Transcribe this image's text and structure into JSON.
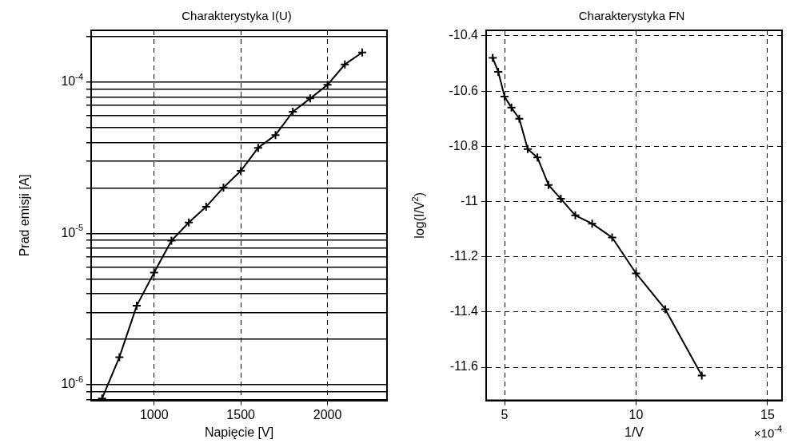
{
  "chart_data": [
    {
      "type": "line",
      "title": "Charakterystyka I(U)",
      "xlabel": "Napięcie [V]",
      "ylabel": "Prad emisji [A]",
      "x": [
        700,
        800,
        900,
        1000,
        1100,
        1200,
        1300,
        1400,
        1500,
        1600,
        1700,
        1800,
        1900,
        2000,
        2100,
        2200
      ],
      "series": [
        {
          "color": "#000000",
          "values": [
            8.1e-07,
            1.52e-06,
            3.33e-06,
            5.5e-06,
            8.95e-06,
            1.18e-05,
            1.5e-05,
            2.01e-05,
            2.59e-05,
            3.68e-05,
            4.47e-05,
            6.37e-05,
            7.8e-05,
            9.6e-05,
            0.000131,
            0.000157
          ]
        }
      ],
      "log": "y",
      "xlim": [
        637,
        2343
      ],
      "ylim": [
        7.87e-07,
        0.00022
      ],
      "xticks": [
        1000,
        1500,
        2000
      ],
      "yticks": [
        {
          "value": 8e-07,
          "label": null
        },
        {
          "value": 9e-07,
          "label": null
        },
        {
          "value": 1e-06,
          "label": "10$^{-6}$"
        },
        {
          "value": 2e-06,
          "label": null
        },
        {
          "value": 3e-06,
          "label": null
        },
        {
          "value": 4e-06,
          "label": null
        },
        {
          "value": 5e-06,
          "label": null
        },
        {
          "value": 6e-06,
          "label": null
        },
        {
          "value": 7e-06,
          "label": null
        },
        {
          "value": 8e-06,
          "label": null
        },
        {
          "value": 9e-06,
          "label": null
        },
        {
          "value": 1e-05,
          "label": "10$^{-5}$"
        },
        {
          "value": 2e-05,
          "label": null
        },
        {
          "value": 3e-05,
          "label": null
        },
        {
          "value": 4e-05,
          "label": null
        },
        {
          "value": 5e-05,
          "label": null
        },
        {
          "value": 6e-05,
          "label": null
        },
        {
          "value": 7e-05,
          "label": null
        },
        {
          "value": 8e-05,
          "label": null
        },
        {
          "value": 9e-05,
          "label": null
        },
        {
          "value": 0.0001,
          "label": "10$^{-4}$"
        },
        {
          "value": 0.0002,
          "label": null
        }
      ],
      "grid": true,
      "legend": false,
      "marker": "cross",
      "line_style": "solid"
    },
    {
      "type": "line",
      "title": "Charakterystyka FN",
      "xlabel": "1/V",
      "ylabel": "log(I/V$^{2}$)",
      "x": [
        4.55,
        4.76,
        5.0,
        5.26,
        5.56,
        5.88,
        6.25,
        6.67,
        7.14,
        7.69,
        8.33,
        9.09,
        10.0,
        11.11,
        12.5
      ],
      "series": [
        {
          "color": "#000000",
          "values": [
            -10.48,
            -10.53,
            -10.62,
            -10.66,
            -10.7,
            -10.81,
            -10.84,
            -10.94,
            -10.99,
            -11.05,
            -11.08,
            -11.13,
            -11.26,
            -11.39,
            -11.63
          ]
        }
      ],
      "xlim": [
        4.3,
        15.55
      ],
      "ylim": [
        -11.72,
        -10.38
      ],
      "xticks": [
        5,
        10,
        15
      ],
      "yticks": [
        -10.4,
        -10.6,
        -10.8,
        -11,
        -11.2,
        -11.4,
        -11.6
      ],
      "annotations": [
        "×10$^{-4}$"
      ],
      "grid": true,
      "legend": false,
      "marker": "cross",
      "line_style": "solid"
    }
  ]
}
